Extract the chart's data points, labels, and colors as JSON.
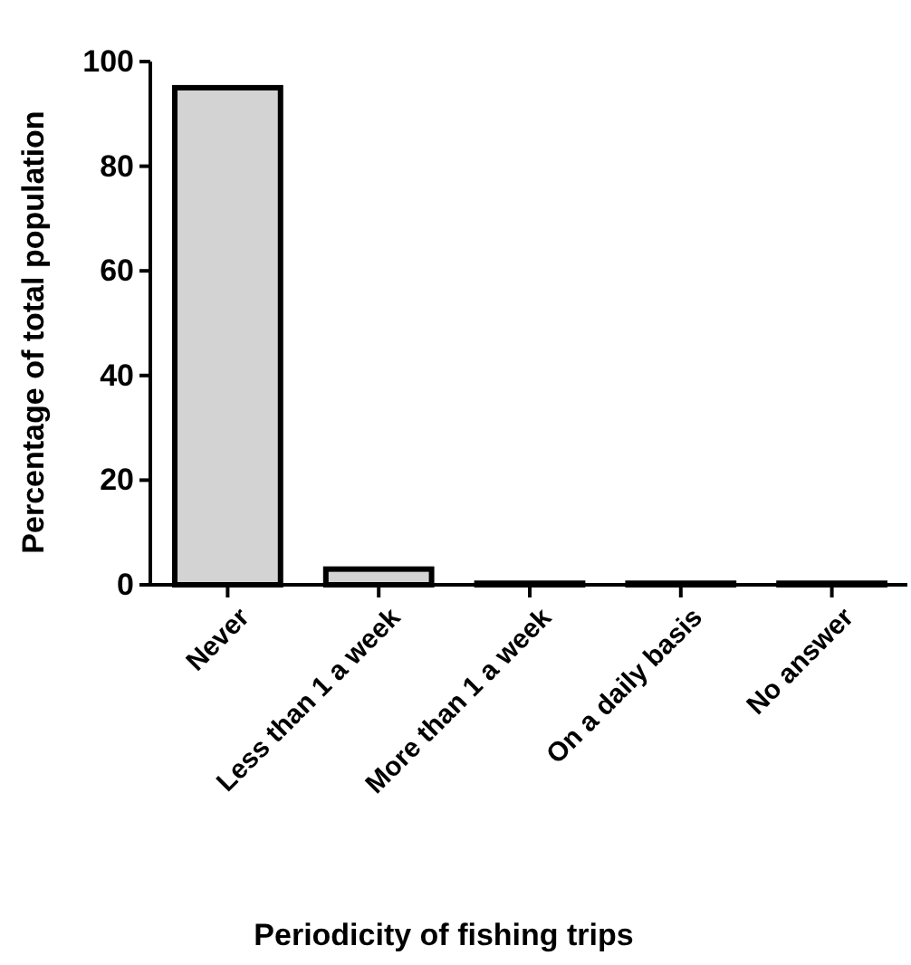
{
  "chart_data": {
    "type": "bar",
    "xlabel": "Periodicity of fishing trips",
    "ylabel": "Percentage of total population",
    "categories": [
      "Never",
      "Less than 1 a week",
      "More than 1 a week",
      "On a daily basis",
      "No answer"
    ],
    "values": [
      95,
      3,
      0.3,
      0.3,
      0.3
    ],
    "color": "#d3d3d3",
    "ylim": [
      0,
      100
    ],
    "yticks": [
      0,
      20,
      40,
      60,
      80,
      100
    ],
    "grid": false
  }
}
